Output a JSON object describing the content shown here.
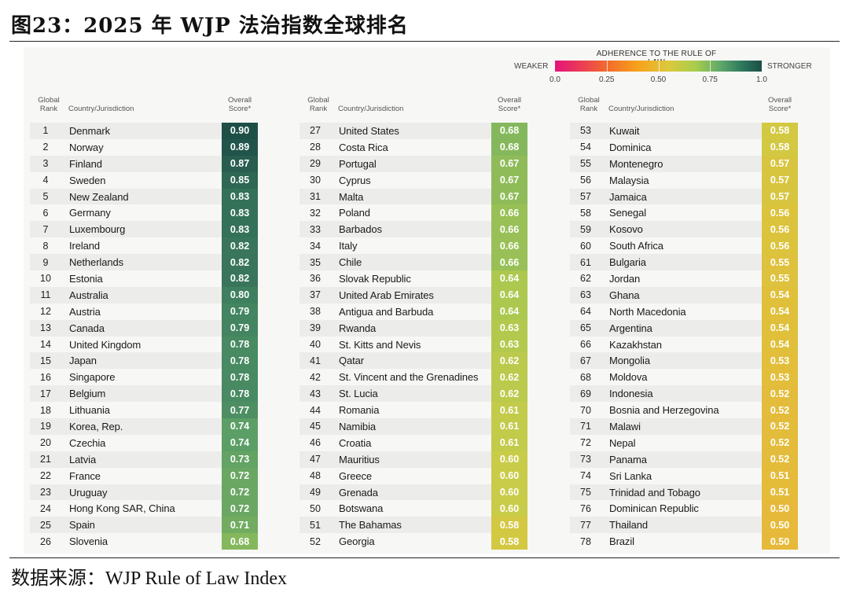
{
  "figure_title": "图23：2025 年 WJP 法治指数全球排名",
  "source_label": "数据来源：WJP Rule of Law Index",
  "chart_data": {
    "type": "table",
    "title": "2025 WJP Rule of Law Index Global Ranking",
    "legend": {
      "title": "ADHERENCE TO THE RULE OF LAW",
      "weaker_label": "WEAKER",
      "stronger_label": "STRONGER",
      "ticks": [
        "0.0",
        "0.25",
        "0.50",
        "0.75",
        "1.0"
      ],
      "colors": [
        "#e4137a",
        "#f26a2e",
        "#f7a21b",
        "#dcc93d",
        "#a8cd4c",
        "#5fa86b",
        "#1b4d45"
      ]
    },
    "headers": {
      "rank": "Global Rank",
      "rank_line1": "Global",
      "rank_line2": "Rank",
      "country": "Country/Jurisdiction",
      "score": "Overall Score*",
      "score_line1": "Overall",
      "score_line2": "Score*"
    },
    "columns": [
      [
        {
          "rank": "1",
          "country": "Denmark",
          "score": "0.90"
        },
        {
          "rank": "2",
          "country": "Norway",
          "score": "0.89"
        },
        {
          "rank": "3",
          "country": "Finland",
          "score": "0.87"
        },
        {
          "rank": "4",
          "country": "Sweden",
          "score": "0.85"
        },
        {
          "rank": "5",
          "country": "New Zealand",
          "score": "0.83"
        },
        {
          "rank": "6",
          "country": "Germany",
          "score": "0.83"
        },
        {
          "rank": "7",
          "country": "Luxembourg",
          "score": "0.83"
        },
        {
          "rank": "8",
          "country": "Ireland",
          "score": "0.82"
        },
        {
          "rank": "9",
          "country": "Netherlands",
          "score": "0.82"
        },
        {
          "rank": "10",
          "country": "Estonia",
          "score": "0.82"
        },
        {
          "rank": "11",
          "country": "Australia",
          "score": "0.80"
        },
        {
          "rank": "12",
          "country": "Austria",
          "score": "0.79"
        },
        {
          "rank": "13",
          "country": "Canada",
          "score": "0.79"
        },
        {
          "rank": "14",
          "country": "United Kingdom",
          "score": "0.78"
        },
        {
          "rank": "15",
          "country": "Japan",
          "score": "0.78"
        },
        {
          "rank": "16",
          "country": "Singapore",
          "score": "0.78"
        },
        {
          "rank": "17",
          "country": "Belgium",
          "score": "0.78"
        },
        {
          "rank": "18",
          "country": "Lithuania",
          "score": "0.77"
        },
        {
          "rank": "19",
          "country": "Korea, Rep.",
          "score": "0.74"
        },
        {
          "rank": "20",
          "country": "Czechia",
          "score": "0.74"
        },
        {
          "rank": "21",
          "country": "Latvia",
          "score": "0.73"
        },
        {
          "rank": "22",
          "country": "France",
          "score": "0.72"
        },
        {
          "rank": "23",
          "country": "Uruguay",
          "score": "0.72"
        },
        {
          "rank": "24",
          "country": "Hong Kong SAR, China",
          "score": "0.72"
        },
        {
          "rank": "25",
          "country": "Spain",
          "score": "0.71"
        },
        {
          "rank": "26",
          "country": "Slovenia",
          "score": "0.68"
        }
      ],
      [
        {
          "rank": "27",
          "country": "United States",
          "score": "0.68"
        },
        {
          "rank": "28",
          "country": "Costa Rica",
          "score": "0.68"
        },
        {
          "rank": "29",
          "country": "Portugal",
          "score": "0.67"
        },
        {
          "rank": "30",
          "country": "Cyprus",
          "score": "0.67"
        },
        {
          "rank": "31",
          "country": "Malta",
          "score": "0.67"
        },
        {
          "rank": "32",
          "country": "Poland",
          "score": "0.66"
        },
        {
          "rank": "33",
          "country": "Barbados",
          "score": "0.66"
        },
        {
          "rank": "34",
          "country": "Italy",
          "score": "0.66"
        },
        {
          "rank": "35",
          "country": "Chile",
          "score": "0.66"
        },
        {
          "rank": "36",
          "country": "Slovak Republic",
          "score": "0.64"
        },
        {
          "rank": "37",
          "country": "United Arab Emirates",
          "score": "0.64"
        },
        {
          "rank": "38",
          "country": "Antigua and Barbuda",
          "score": "0.64"
        },
        {
          "rank": "39",
          "country": "Rwanda",
          "score": "0.63"
        },
        {
          "rank": "40",
          "country": "St. Kitts and Nevis",
          "score": "0.63"
        },
        {
          "rank": "41",
          "country": "Qatar",
          "score": "0.62"
        },
        {
          "rank": "42",
          "country": "St. Vincent and the Grenadines",
          "score": "0.62"
        },
        {
          "rank": "43",
          "country": "St. Lucia",
          "score": "0.62"
        },
        {
          "rank": "44",
          "country": "Romania",
          "score": "0.61"
        },
        {
          "rank": "45",
          "country": "Namibia",
          "score": "0.61"
        },
        {
          "rank": "46",
          "country": "Croatia",
          "score": "0.61"
        },
        {
          "rank": "47",
          "country": "Mauritius",
          "score": "0.60"
        },
        {
          "rank": "48",
          "country": "Greece",
          "score": "0.60"
        },
        {
          "rank": "49",
          "country": "Grenada",
          "score": "0.60"
        },
        {
          "rank": "50",
          "country": "Botswana",
          "score": "0.60"
        },
        {
          "rank": "51",
          "country": "The Bahamas",
          "score": "0.58"
        },
        {
          "rank": "52",
          "country": "Georgia",
          "score": "0.58"
        }
      ],
      [
        {
          "rank": "53",
          "country": "Kuwait",
          "score": "0.58"
        },
        {
          "rank": "54",
          "country": "Dominica",
          "score": "0.58"
        },
        {
          "rank": "55",
          "country": "Montenegro",
          "score": "0.57"
        },
        {
          "rank": "56",
          "country": "Malaysia",
          "score": "0.57"
        },
        {
          "rank": "57",
          "country": "Jamaica",
          "score": "0.57"
        },
        {
          "rank": "58",
          "country": "Senegal",
          "score": "0.56"
        },
        {
          "rank": "59",
          "country": "Kosovo",
          "score": "0.56"
        },
        {
          "rank": "60",
          "country": "South Africa",
          "score": "0.56"
        },
        {
          "rank": "61",
          "country": "Bulgaria",
          "score": "0.55"
        },
        {
          "rank": "62",
          "country": "Jordan",
          "score": "0.55"
        },
        {
          "rank": "63",
          "country": "Ghana",
          "score": "0.54"
        },
        {
          "rank": "64",
          "country": "North Macedonia",
          "score": "0.54"
        },
        {
          "rank": "65",
          "country": "Argentina",
          "score": "0.54"
        },
        {
          "rank": "66",
          "country": "Kazakhstan",
          "score": "0.54"
        },
        {
          "rank": "67",
          "country": "Mongolia",
          "score": "0.53"
        },
        {
          "rank": "68",
          "country": "Moldova",
          "score": "0.53"
        },
        {
          "rank": "69",
          "country": "Indonesia",
          "score": "0.52"
        },
        {
          "rank": "70",
          "country": "Bosnia and Herzegovina",
          "score": "0.52"
        },
        {
          "rank": "71",
          "country": "Malawi",
          "score": "0.52"
        },
        {
          "rank": "72",
          "country": "Nepal",
          "score": "0.52"
        },
        {
          "rank": "73",
          "country": "Panama",
          "score": "0.52"
        },
        {
          "rank": "74",
          "country": "Sri Lanka",
          "score": "0.51"
        },
        {
          "rank": "75",
          "country": "Trinidad and Tobago",
          "score": "0.51"
        },
        {
          "rank": "76",
          "country": "Dominican Republic",
          "score": "0.50"
        },
        {
          "rank": "77",
          "country": "Thailand",
          "score": "0.50"
        },
        {
          "rank": "78",
          "country": "Brazil",
          "score": "0.50"
        }
      ]
    ]
  }
}
